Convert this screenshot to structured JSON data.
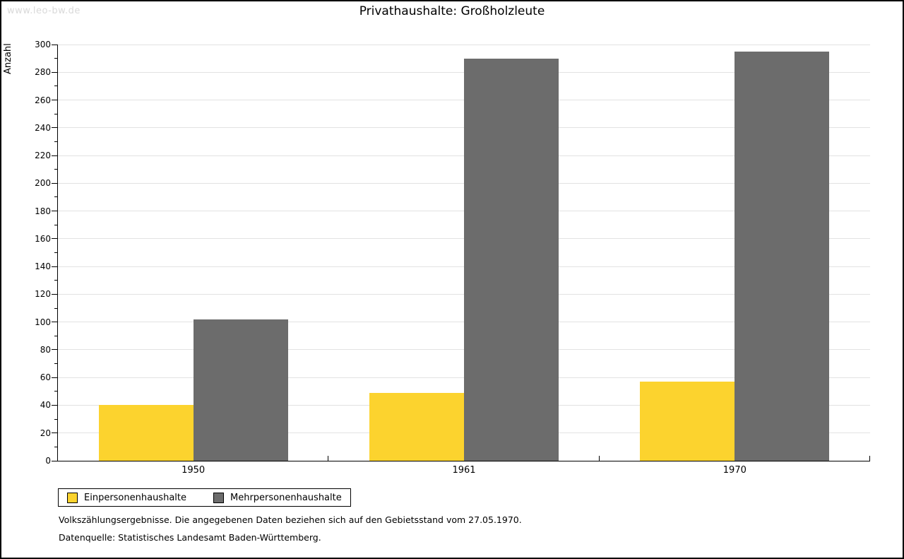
{
  "watermark": "www.leo-bw.de",
  "chart_data": {
    "type": "bar",
    "title": "Privathaushalte: Großholzleute",
    "categories": [
      "1950",
      "1961",
      "1970"
    ],
    "series": [
      {
        "name": "Einpersonenhaushalte",
        "color": "#FCD32E",
        "values": [
          40,
          49,
          57
        ]
      },
      {
        "name": "Mehrpersonenhaushalte",
        "color": "#6C6C6C",
        "values": [
          102,
          290,
          295
        ]
      }
    ],
    "xlabel": "",
    "ylabel": "Anzahl",
    "ylim": [
      0,
      300
    ],
    "ytick_step": 20,
    "minor_tick_step": 10,
    "grid": true,
    "legend_position": "bottom-left"
  },
  "colors": {
    "gridline": "#e2e2e2",
    "axis": "#000000",
    "watermark": "#d9d9d9",
    "background": "#ffffff"
  },
  "footer": {
    "line1": "Volkszählungsergebnisse. Die angegebenen Daten beziehen sich auf den Gebietsstand vom 27.05.1970.",
    "line2": "Datenquelle: Statistisches Landesamt Baden-Württemberg."
  }
}
